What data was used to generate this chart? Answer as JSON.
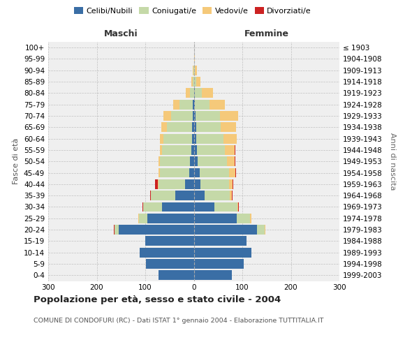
{
  "age_groups": [
    "0-4",
    "5-9",
    "10-14",
    "15-19",
    "20-24",
    "25-29",
    "30-34",
    "35-39",
    "40-44",
    "45-49",
    "50-54",
    "55-59",
    "60-64",
    "65-69",
    "70-74",
    "75-79",
    "80-84",
    "85-89",
    "90-94",
    "95-99",
    "100+"
  ],
  "birth_years": [
    "1999-2003",
    "1994-1998",
    "1989-1993",
    "1984-1988",
    "1979-1983",
    "1974-1978",
    "1969-1973",
    "1964-1968",
    "1959-1963",
    "1954-1958",
    "1949-1953",
    "1944-1948",
    "1939-1943",
    "1934-1938",
    "1929-1933",
    "1924-1928",
    "1919-1923",
    "1914-1918",
    "1909-1913",
    "1904-1908",
    "≤ 1903"
  ],
  "male_celibe": [
    72,
    98,
    112,
    100,
    155,
    95,
    65,
    38,
    18,
    10,
    8,
    5,
    4,
    3,
    2,
    2,
    0,
    0,
    0,
    0,
    0
  ],
  "male_coniugato": [
    0,
    0,
    0,
    0,
    8,
    18,
    40,
    50,
    55,
    60,
    62,
    60,
    58,
    52,
    45,
    28,
    8,
    2,
    1,
    0,
    0
  ],
  "male_vedovo": [
    0,
    0,
    0,
    0,
    1,
    1,
    0,
    1,
    1,
    2,
    3,
    5,
    8,
    12,
    15,
    12,
    8,
    3,
    1,
    0,
    0
  ],
  "male_divorziato": [
    0,
    0,
    0,
    0,
    1,
    1,
    1,
    1,
    6,
    1,
    0,
    0,
    0,
    0,
    0,
    0,
    0,
    0,
    0,
    0,
    0
  ],
  "female_celibe": [
    78,
    103,
    118,
    108,
    130,
    88,
    42,
    22,
    14,
    12,
    8,
    6,
    5,
    5,
    4,
    2,
    2,
    1,
    0,
    0,
    0
  ],
  "female_coniugato": [
    0,
    0,
    0,
    0,
    16,
    28,
    48,
    52,
    58,
    60,
    60,
    58,
    56,
    50,
    50,
    30,
    15,
    4,
    2,
    1,
    0
  ],
  "female_vedovo": [
    0,
    0,
    0,
    0,
    1,
    2,
    2,
    5,
    8,
    14,
    16,
    20,
    28,
    32,
    38,
    32,
    22,
    8,
    5,
    1,
    0
  ],
  "female_divorziato": [
    0,
    0,
    0,
    0,
    0,
    1,
    1,
    1,
    1,
    1,
    1,
    2,
    0,
    0,
    0,
    0,
    0,
    0,
    0,
    0,
    0
  ],
  "colors": {
    "celibe": "#3A6EA5",
    "coniugato": "#C5D9A8",
    "vedovo": "#F5C97A",
    "divorziato": "#CC2222"
  },
  "xlim": 300,
  "title": "Popolazione per età, sesso e stato civile - 2004",
  "subtitle": "COMUNE DI CONDOFURI (RC) - Dati ISTAT 1° gennaio 2004 - Elaborazione TUTTITALIA.IT",
  "ylabel": "Fasce di età",
  "right_ylabel": "Anni di nascita",
  "maschi_label": "Maschi",
  "femmine_label": "Femmine",
  "legend_labels": [
    "Celibi/Nubili",
    "Coniugati/e",
    "Vedovi/e",
    "Divorziati/e"
  ],
  "bg_color": "#ffffff",
  "plot_bg": "#efefef"
}
